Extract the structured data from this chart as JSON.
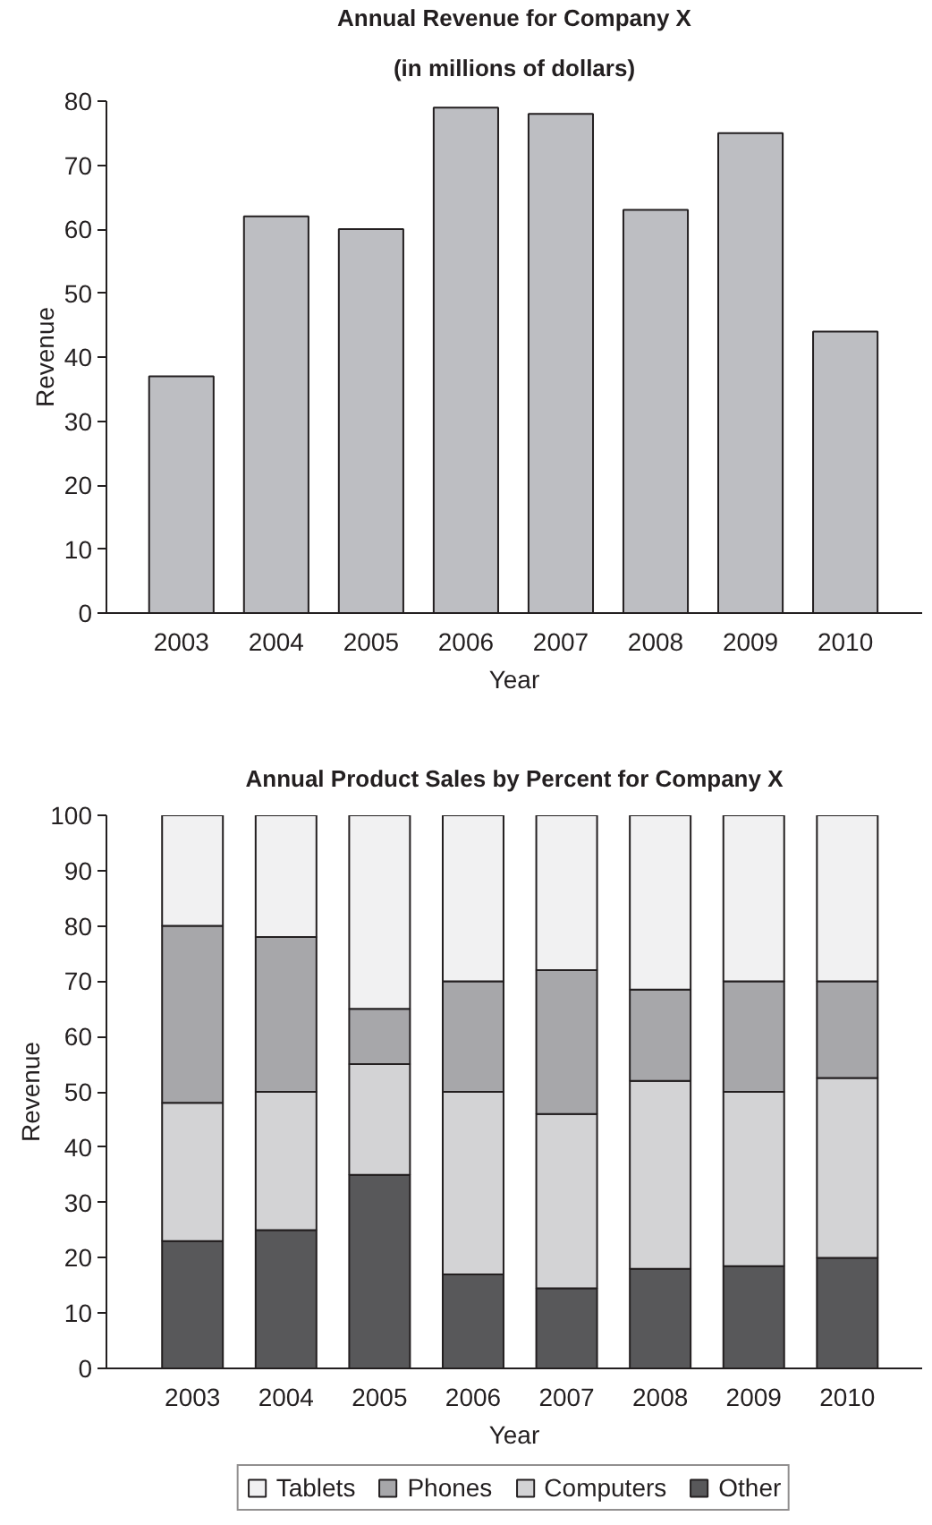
{
  "chart_data": [
    {
      "type": "bar",
      "title": "Annual Revenue for Company X",
      "subtitle": "(in millions of dollars)",
      "xlabel": "Year",
      "ylabel": "Revenue",
      "categories": [
        "2003",
        "2004",
        "2005",
        "2006",
        "2007",
        "2008",
        "2009",
        "2010"
      ],
      "values": [
        37,
        62,
        60,
        79,
        78,
        63,
        75,
        44
      ],
      "color": "#bdbec2",
      "ylim": [
        0,
        80
      ],
      "yticks": [
        0,
        10,
        20,
        30,
        40,
        50,
        60,
        70,
        80
      ],
      "grid": false
    },
    {
      "type": "bar",
      "stacked": true,
      "title": "Annual Product Sales by Percent for Company X",
      "xlabel": "Year",
      "ylabel": "Revenue",
      "categories": [
        "2003",
        "2004",
        "2005",
        "2006",
        "2007",
        "2008",
        "2009",
        "2010"
      ],
      "series": [
        {
          "name": "Other",
          "color": "#58585a",
          "values": [
            23,
            25,
            35,
            17,
            14.5,
            18,
            18.5,
            20
          ]
        },
        {
          "name": "Computers",
          "color": "#d3d3d5",
          "values": [
            25,
            25,
            20,
            33,
            31.5,
            34,
            31.5,
            32.5
          ]
        },
        {
          "name": "Phones",
          "color": "#a7a7aa",
          "values": [
            32,
            28,
            10,
            20,
            26,
            16.5,
            20,
            17.5
          ]
        },
        {
          "name": "Tablets",
          "color": "#f1f1f2",
          "values": [
            20,
            22,
            35,
            30,
            28,
            31.5,
            30,
            30
          ]
        }
      ],
      "ylim": [
        0,
        100
      ],
      "yticks": [
        0,
        10,
        20,
        30,
        40,
        50,
        60,
        70,
        80,
        90,
        100
      ],
      "grid": false,
      "legend": "bottom"
    }
  ]
}
